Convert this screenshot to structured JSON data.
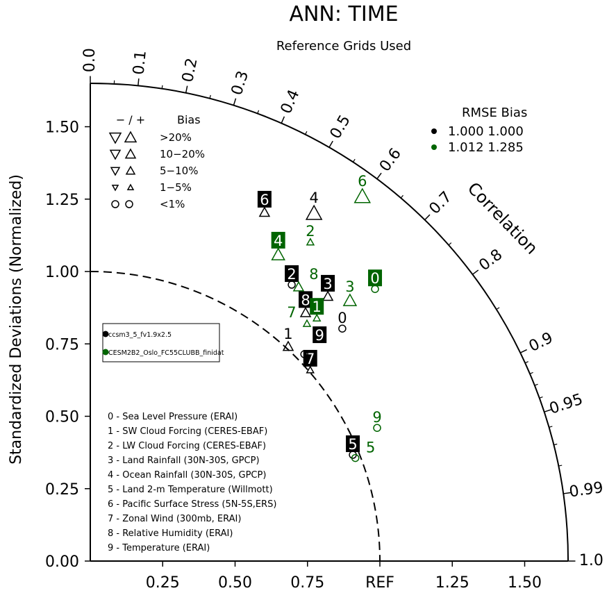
{
  "chart_data": {
    "type": "scatter",
    "subtype": "taylor-diagram",
    "title": "ANN: TIME",
    "subtitle": "Reference Grids Used",
    "ylabel": "Standardized Deviations (Normalized)",
    "arc_label": "Correlation",
    "std_ticks": [
      "0.00",
      "0.25",
      "0.50",
      "0.75",
      "1.00",
      "1.25",
      "1.50"
    ],
    "x_ticks": [
      "0.25",
      "0.50",
      "0.75",
      "REF",
      "1.25",
      "1.50"
    ],
    "corr_ticks": [
      "0.0",
      "0.1",
      "0.2",
      "0.3",
      "0.4",
      "0.5",
      "0.6",
      "0.7",
      "0.8",
      "0.9",
      "0.95",
      "0.99",
      "1.0"
    ],
    "std_max": 1.65,
    "bias_legend": {
      "header": [
        "− / +",
        "Bias"
      ],
      "rows": [
        {
          "label": ">20%",
          "size": "xl"
        },
        {
          "label": "10−20%",
          "size": "l"
        },
        {
          "label": "5−10%",
          "size": "m"
        },
        {
          "label": "1−5%",
          "size": "s"
        },
        {
          "label": "<1%",
          "size": "circle"
        }
      ]
    },
    "rmse_legend": {
      "header": "RMSE  Bias",
      "rows": [
        {
          "values": "1.000 1.000",
          "color": "#000000"
        },
        {
          "values": "1.012 1.285",
          "color": "#006400"
        }
      ]
    },
    "case_legend": [
      {
        "name": "ccsm3_5_fv1.9x2.5",
        "color": "#000000"
      },
      {
        "name": "CESM2B2_Oslo_FC55CLUBB_finidat",
        "color": "#006400"
      }
    ],
    "variables": [
      "0 - Sea Level Pressure (ERAI)",
      "1 - SW Cloud Forcing (CERES-EBAF)",
      "2 - LW Cloud Forcing (CERES-EBAF)",
      "3 - Land Rainfall (30N-30S, GPCP)",
      "4 - Ocean Rainfall (30N-30S, GPCP)",
      "5 - Land 2-m Temperature (Willmott)",
      "6 - Pacific Surface Stress (5N-5S,ERS)",
      "7 - Zonal Wind (300mb, ERAI)",
      "8 - Relative Humidity (ERAI)",
      "9 - Temperature (ERAI)"
    ],
    "series": [
      {
        "name": "ccsm3_5_fv1.9x2.5",
        "color": "#000000",
        "points": [
          {
            "id": "0",
            "std": 1.184,
            "corr": 0.735,
            "marker": "circle",
            "size": "circle",
            "boxed": false
          },
          {
            "id": "1",
            "std": 1.008,
            "corr": 0.678,
            "marker": "up",
            "size": "m",
            "boxed": false
          },
          {
            "id": "2",
            "std": 1.181,
            "corr": 0.589,
            "marker": "circle",
            "size": "circle",
            "boxed": true
          },
          {
            "id": "3",
            "std": 1.228,
            "corr": 0.668,
            "marker": "up",
            "size": "m",
            "boxed": true
          },
          {
            "id": "4",
            "std": 1.428,
            "corr": 0.541,
            "marker": "up",
            "size": "xl",
            "boxed": false
          },
          {
            "id": "5",
            "std": 0.978,
            "corr": 0.927,
            "marker": "circle",
            "size": "circle",
            "boxed": true
          },
          {
            "id": "6",
            "std": 1.346,
            "corr": 0.447,
            "marker": "up",
            "size": "m",
            "boxed": true
          },
          {
            "id": "7",
            "std": 1.006,
            "corr": 0.755,
            "marker": "up",
            "size": "s",
            "boxed": true
          },
          {
            "id": "8",
            "std": 1.135,
            "corr": 0.655,
            "marker": "up",
            "size": "m",
            "boxed": true
          },
          {
            "id": "9",
            "std": 1.028,
            "corr": 0.719,
            "marker": "circle",
            "size": "circle",
            "boxed": true
          }
        ]
      },
      {
        "name": "CESM2B2_Oslo_FC55CLUBB_finidat",
        "color": "#006400",
        "points": [
          {
            "id": "0",
            "std": 1.36,
            "corr": 0.723,
            "marker": "circle",
            "size": "circle",
            "boxed": true
          },
          {
            "id": "1",
            "std": 1.147,
            "corr": 0.682,
            "marker": "up",
            "size": "s",
            "boxed": true
          },
          {
            "id": "2",
            "std": 1.338,
            "corr": 0.568,
            "marker": "up",
            "size": "s",
            "boxed": false
          },
          {
            "id": "3",
            "std": 1.27,
            "corr": 0.706,
            "marker": "up",
            "size": "l",
            "boxed": false
          },
          {
            "id": "4",
            "std": 1.241,
            "corr": 0.523,
            "marker": "up",
            "size": "l",
            "boxed": true
          },
          {
            "id": "5",
            "std": 0.982,
            "corr": 0.932,
            "marker": "circle",
            "size": "circle",
            "boxed": false
          },
          {
            "id": "6",
            "std": 1.571,
            "corr": 0.598,
            "marker": "up",
            "size": "xl",
            "boxed": false
          },
          {
            "id": "7",
            "std": 1.11,
            "corr": 0.674,
            "marker": "up",
            "size": "s",
            "boxed": false
          },
          {
            "id": "8",
            "std": 1.189,
            "corr": 0.605,
            "marker": "up",
            "size": "m",
            "boxed": false
          },
          {
            "id": "9",
            "std": 1.092,
            "corr": 0.907,
            "marker": "circle",
            "size": "circle",
            "boxed": false
          }
        ]
      }
    ]
  }
}
